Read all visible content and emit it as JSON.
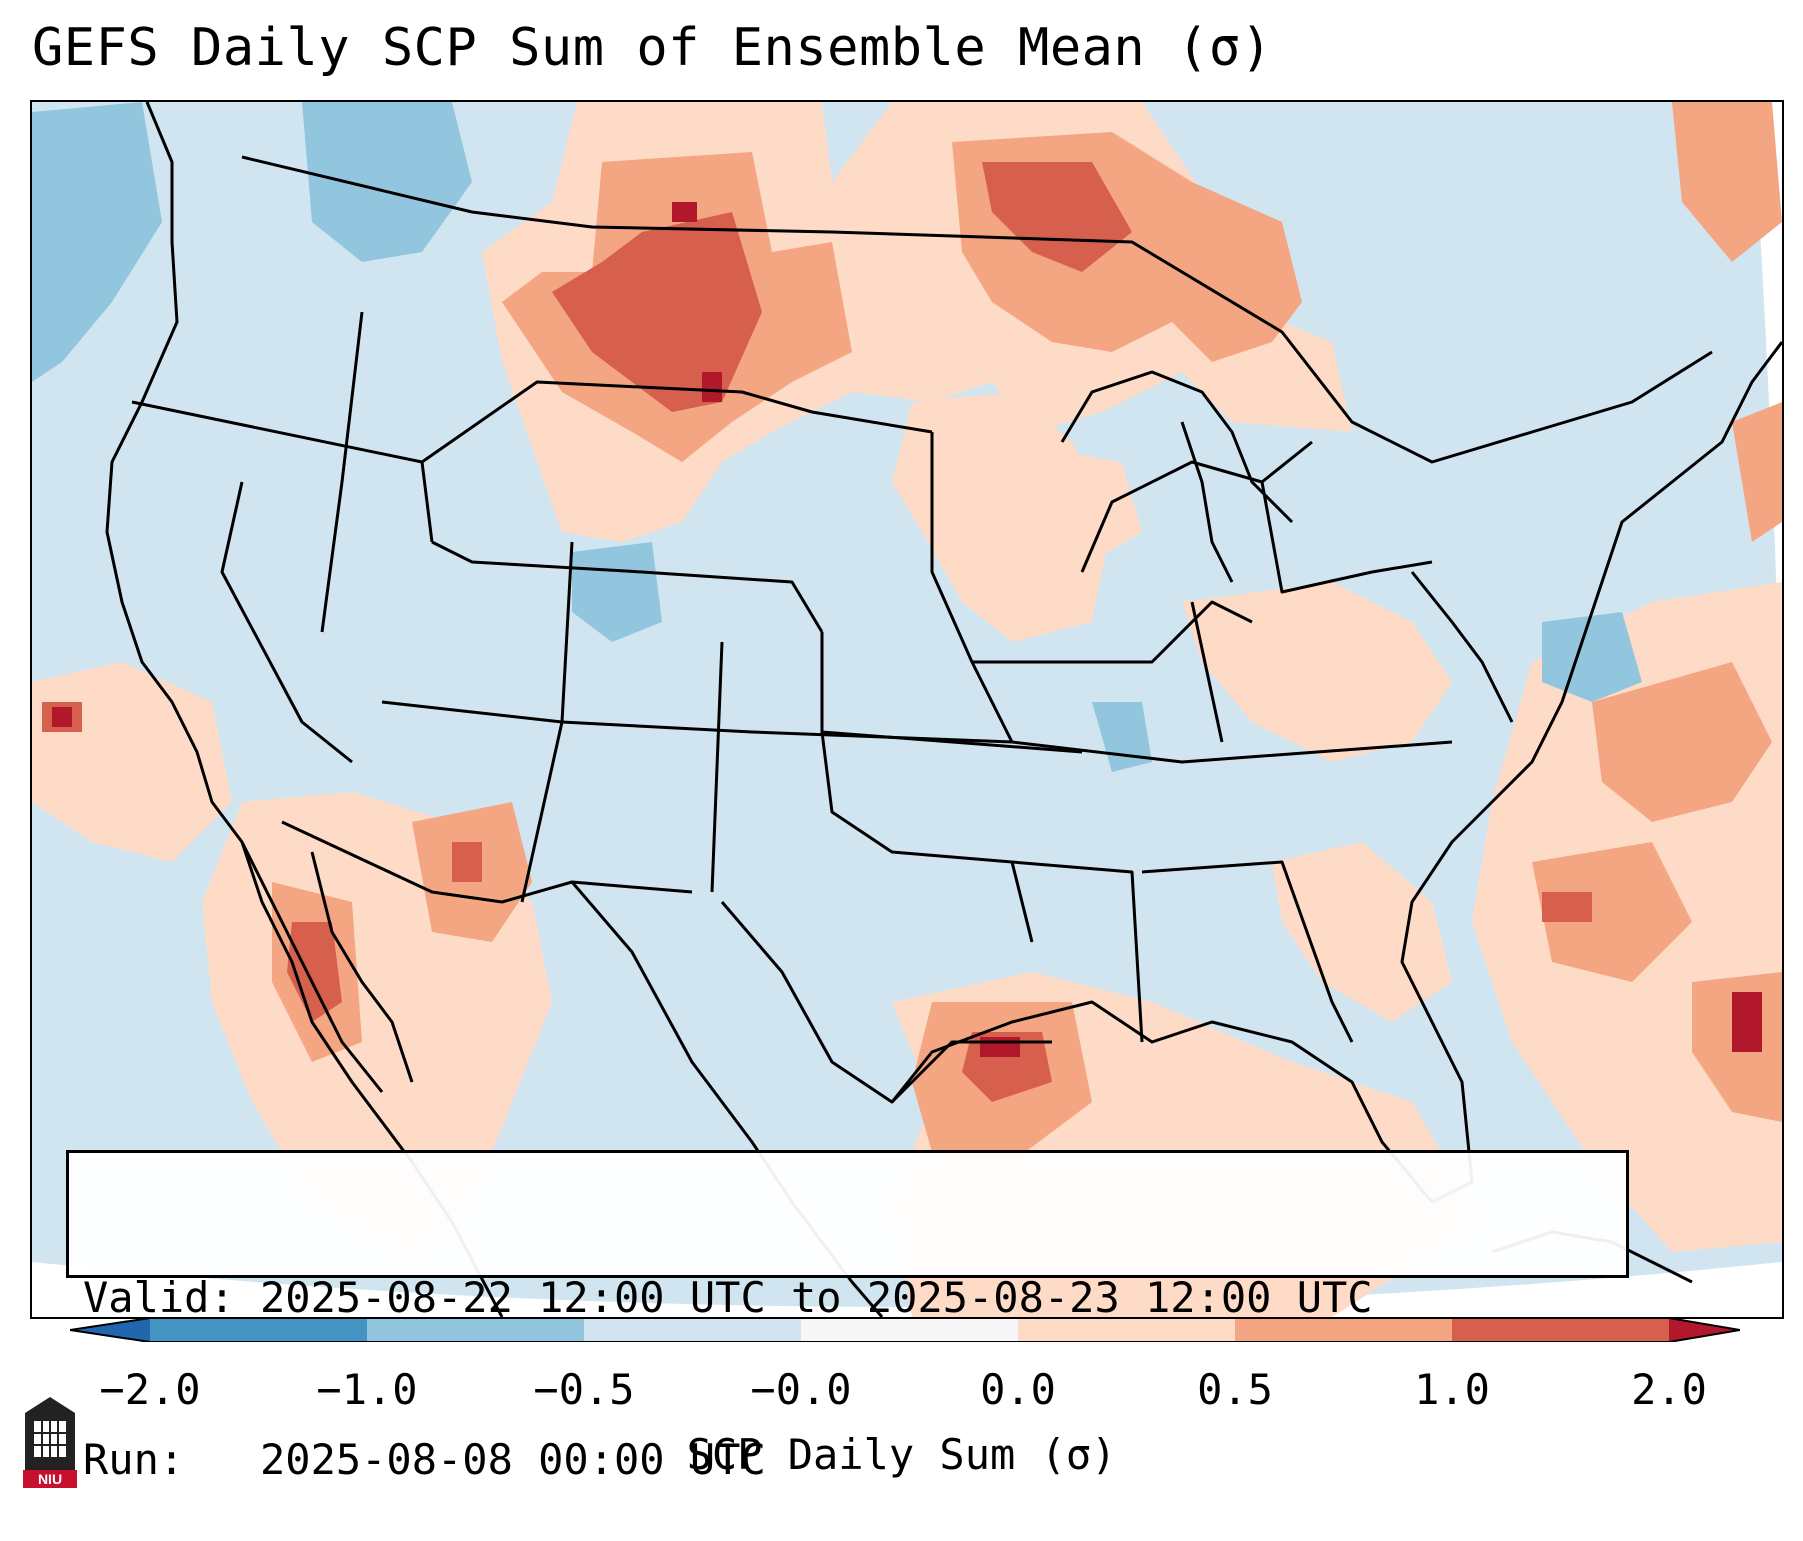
{
  "title": "GEFS Daily SCP Sum of Ensemble Mean (σ)",
  "valid_line": "Valid: 2025-08-22 12:00 UTC to 2025-08-23 12:00 UTC",
  "run_line": "Run:   2025-08-08 00:00 UTC",
  "colorbar": {
    "label": "SCP Daily Sum (σ)",
    "ticks": [
      "−2.0",
      "−1.0",
      "−0.5",
      "−0.0",
      "0.0",
      "0.5",
      "1.0",
      "2.0"
    ],
    "colors": {
      "below": "#2166ac",
      "bin_neg2_neg1": "#4393c3",
      "bin_neg1_neg05": "#92c5de",
      "bin_neg05_0": "#d1e5f0",
      "bin_zero": "#f7f7f7",
      "bin_0_05": "#fddbc7",
      "bin_05_1": "#f4a582",
      "bin_1_2": "#d6604d",
      "above": "#b2182b"
    }
  },
  "logo_text": "NIU",
  "logo_color": "#c8102e"
}
